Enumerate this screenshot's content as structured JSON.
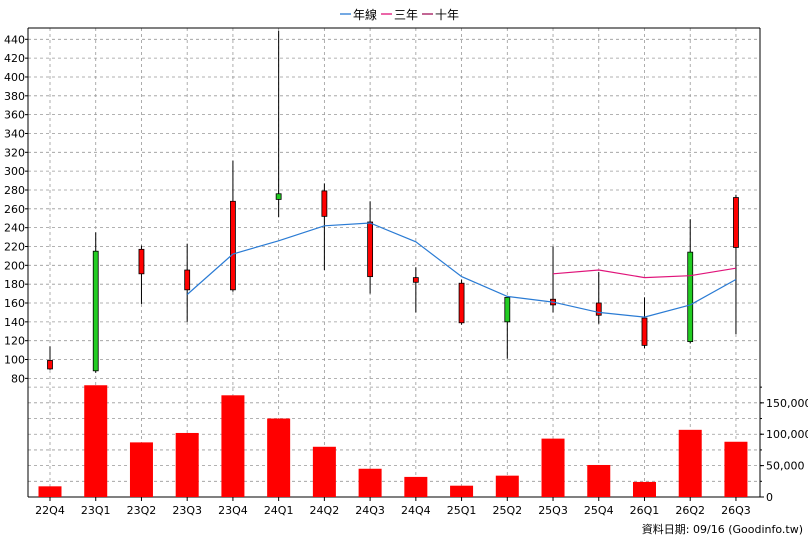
{
  "chart_data": {
    "type": "candlestick",
    "categories": [
      "22Q4",
      "23Q1",
      "23Q2",
      "23Q3",
      "23Q4",
      "24Q1",
      "24Q2",
      "24Q3",
      "24Q4",
      "25Q1",
      "25Q2",
      "25Q3",
      "25Q4",
      "26Q1",
      "26Q2",
      "26Q3"
    ],
    "legend": [
      {
        "name": "年線",
        "color": "#2a7bd4"
      },
      {
        "name": "三年",
        "color": "#e0147a"
      },
      {
        "name": "十年",
        "color": "#a0145a"
      }
    ],
    "legend_position": "top-center",
    "price_axis": {
      "ylim": [
        74,
        452
      ],
      "ticks": [
        80,
        100,
        120,
        140,
        160,
        180,
        200,
        220,
        240,
        260,
        280,
        300,
        320,
        340,
        360,
        380,
        400,
        420,
        440
      ]
    },
    "candles": [
      {
        "open": 90,
        "close": 99,
        "high": 114,
        "low": 89
      },
      {
        "open": 215,
        "close": 88,
        "high": 235,
        "low": 86
      },
      {
        "open": 191,
        "close": 217,
        "high": 221,
        "low": 159
      },
      {
        "open": 174,
        "close": 195,
        "high": 223,
        "low": 140
      },
      {
        "open": 174,
        "close": 268,
        "high": 311,
        "low": 172
      },
      {
        "open": 276,
        "close": 270,
        "high": 449,
        "low": 251
      },
      {
        "open": 252,
        "close": 279,
        "high": 287,
        "low": 195
      },
      {
        "open": 188,
        "close": 246,
        "high": 268,
        "low": 170
      },
      {
        "open": 182,
        "close": 187,
        "high": 198,
        "low": 150
      },
      {
        "open": 139,
        "close": 181,
        "high": 185,
        "low": 137
      },
      {
        "open": 166,
        "close": 140,
        "high": 167,
        "low": 101
      },
      {
        "open": 158,
        "close": 164,
        "high": 220,
        "low": 150
      },
      {
        "open": 147,
        "close": 160,
        "high": 193,
        "low": 138
      },
      {
        "open": 115,
        "close": 144,
        "high": 166,
        "low": 112
      },
      {
        "open": 214,
        "close": 119,
        "high": 249,
        "low": 117
      },
      {
        "open": 219,
        "close": 272,
        "high": 275,
        "low": 127
      }
    ],
    "lines": [
      {
        "name": "年線",
        "color": "#2a7bd4",
        "values": [
          null,
          null,
          null,
          169,
          212,
          226,
          242,
          245,
          225,
          188,
          167,
          161,
          150,
          145,
          158,
          185
        ]
      },
      {
        "name": "三年",
        "color": "#e0147a",
        "values": [
          null,
          null,
          null,
          null,
          null,
          null,
          null,
          null,
          null,
          null,
          null,
          191,
          195,
          187,
          189,
          197
        ]
      },
      {
        "name": "十年",
        "color": "#a0145a",
        "values": [
          null,
          null,
          null,
          null,
          null,
          null,
          null,
          null,
          null,
          null,
          null,
          null,
          null,
          null,
          null,
          null
        ]
      }
    ],
    "volume_axis": {
      "ylim": [
        0,
        180000
      ],
      "ticks": [
        0,
        50000,
        100000,
        150000
      ],
      "tick_labels": [
        "0",
        "50,000",
        "100,000",
        "150,000"
      ]
    },
    "volumes": [
      17000,
      178000,
      87000,
      102000,
      162000,
      125000,
      80000,
      45000,
      32000,
      18000,
      34000,
      93000,
      51000,
      24000,
      107000,
      88000
    ],
    "colors": {
      "up": "#ff0000",
      "down": "#22cc22",
      "bar": "#ff0000",
      "grid": "#999999"
    },
    "footer": "資料日期: 09/16  (Goodinfo.tw)"
  }
}
